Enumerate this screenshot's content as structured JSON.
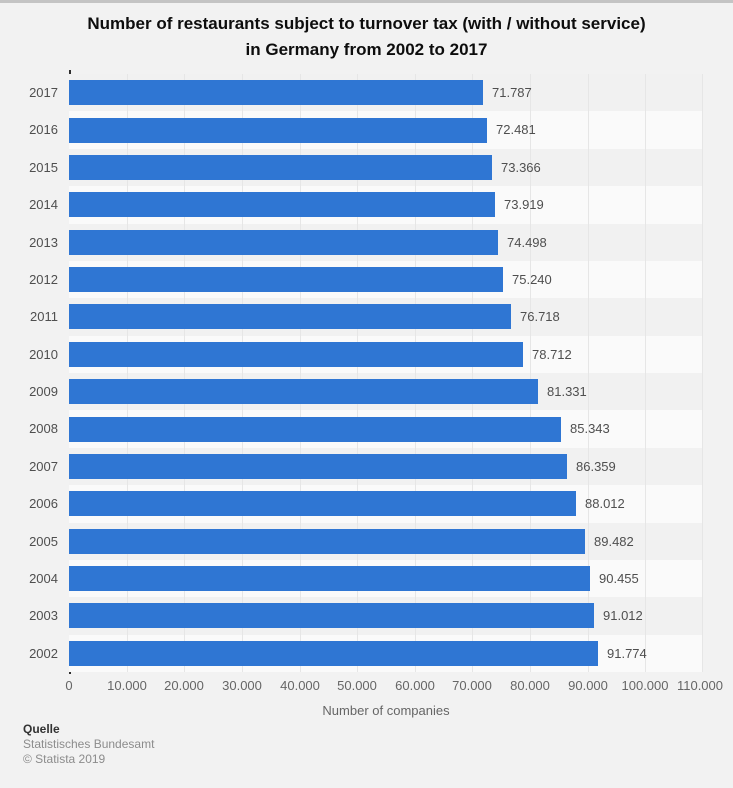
{
  "window": {
    "background": "#f2f2f2",
    "top_strip_color": "#c4c4c4"
  },
  "title": {
    "line1": "Number of restaurants subject to turnover tax (with / without service)",
    "line2": "in Germany from 2002 to 2017"
  },
  "chart_data": {
    "type": "bar",
    "orientation": "horizontal",
    "title": "Number of restaurants subject to turnover tax (with / without service) in Germany from 2002 to 2017",
    "categories": [
      "2017",
      "2016",
      "2015",
      "2014",
      "2013",
      "2012",
      "2011",
      "2010",
      "2009",
      "2008",
      "2007",
      "2006",
      "2005",
      "2004",
      "2003",
      "2002"
    ],
    "values": [
      71787,
      72481,
      73366,
      73919,
      74498,
      75240,
      76718,
      78712,
      81331,
      85343,
      86359,
      88012,
      89482,
      90455,
      91012,
      91774
    ],
    "value_labels": [
      "71.787",
      "72.481",
      "73.366",
      "73.919",
      "74.498",
      "75.240",
      "76.718",
      "78.712",
      "81.331",
      "85.343",
      "86.359",
      "88.012",
      "89.482",
      "90.455",
      "91.012",
      "91.774"
    ],
    "xlabel": "Number of companies",
    "xlim": [
      0,
      110000
    ],
    "x_tick_values": [
      0,
      10000,
      20000,
      30000,
      40000,
      50000,
      60000,
      70000,
      80000,
      90000,
      100000,
      110000
    ],
    "x_tick_labels": [
      "0",
      "10.000",
      "20.000",
      "30.000",
      "40.000",
      "50.000",
      "60.000",
      "70.000",
      "80.000",
      "90.000",
      "100.000",
      "110.000"
    ],
    "grid": true,
    "legend": "none",
    "bar_color": "#2f76d3",
    "band_color_odd": "#f1f1f1",
    "band_color_even": "#fafafa",
    "gridline_color": "#e6e6e6",
    "axis_line_color": "#2e2e2e",
    "label_color": "#4f4f4f",
    "tick_color": "#666666"
  },
  "footer": {
    "source_label": "Quelle",
    "source_name": "Statistisches Bundesamt",
    "copyright": "© Statista 2019"
  }
}
